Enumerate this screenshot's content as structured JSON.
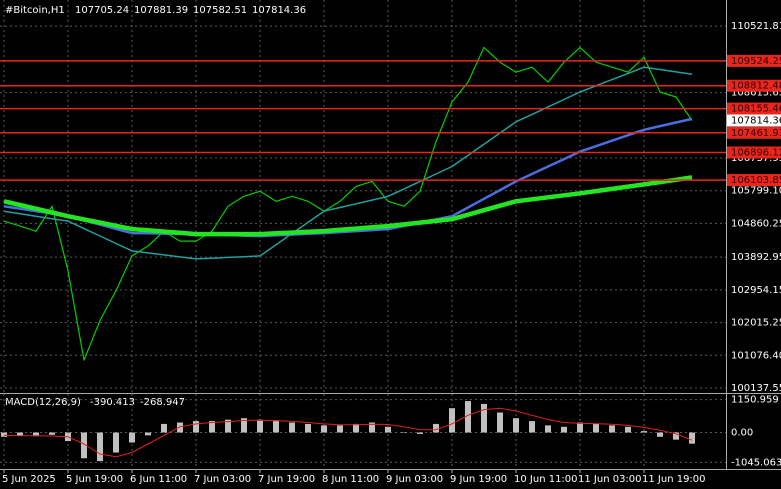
{
  "chart_data": [
    {
      "type": "line",
      "title": "#Bitcoin,H1",
      "header_values": [
        107705.24,
        107881.39,
        107582.51,
        107814.36
      ],
      "categories": [
        "5 Jun 2025",
        null,
        null,
        null,
        "5 Jun 19:00",
        null,
        null,
        null,
        "6 Jun 11:00",
        null,
        null,
        null,
        "7 Jun 03:00",
        null,
        null,
        null,
        "7 Jun 19:00",
        null,
        null,
        null,
        "8 Jun 11:00",
        null,
        null,
        null,
        "9 Jun 03:00",
        null,
        null,
        null,
        "9 Jun 19:00",
        null,
        null,
        null,
        "10 Jun 11:00",
        null,
        null,
        null,
        "11 Jun 03:00",
        null,
        null,
        null,
        "11 Jun 19:00",
        null,
        null,
        null
      ],
      "series": [
        {
          "color": "#00d000",
          "width": 1.2,
          "values": [
            104926,
            104783,
            104638,
            105353,
            103500,
            100935,
            102076,
            102931,
            103928,
            104213,
            104638,
            104353,
            104353,
            104638,
            105353,
            105638,
            105781,
            105496,
            105638,
            105496,
            105211,
            105496,
            105923,
            106066,
            105496,
            105353,
            105781,
            107206,
            108346,
            108916,
            109913,
            109486,
            109201,
            109343,
            108916,
            109486,
            109913,
            109486,
            109343,
            109201,
            109628,
            108631,
            108488,
            107814.36
          ]
        },
        {
          "color": "#20a0a0",
          "width": 1.5,
          "values": [
            105211,
            105140,
            105069,
            104997,
            104926,
            104712,
            104499,
            104285,
            104071,
            104014,
            103957,
            103899,
            103842,
            103864,
            103885,
            103907,
            103928,
            104249,
            104570,
            104890,
            105211,
            105318,
            105425,
            105531,
            105638,
            105852,
            106066,
            106279,
            106493,
            106814,
            107135,
            107455,
            107776,
            107990,
            108204,
            108417,
            108631,
            108809,
            108987,
            109165,
            109343,
            109277,
            109210,
            109144
          ]
        },
        {
          "color": "#4a6ee0",
          "width": 2.5,
          "values": [
            105353,
            105282,
            105211,
            105139,
            105068,
            104947,
            104826,
            104704,
            104583,
            104576,
            104569,
            104562,
            104555,
            104541,
            104527,
            104512,
            104498,
            104519,
            104541,
            104562,
            104583,
            104612,
            104640,
            104669,
            104697,
            104790,
            104883,
            104975,
            105068,
            105318,
            105567,
            105817,
            106066,
            106280,
            106494,
            106707,
            106921,
            107078,
            107235,
            107391,
            107548,
            107652,
            107757,
            107861
          ]
        },
        {
          "color": "#22e622",
          "width": 4.5,
          "values": [
            105496,
            105389,
            105282,
            105175,
            105068,
            104976,
            104883,
            104791,
            104698,
            104662,
            104627,
            104591,
            104555,
            104555,
            104555,
            104555,
            104555,
            104577,
            104598,
            104620,
            104641,
            104677,
            104712,
            104748,
            104783,
            104833,
            104883,
            104933,
            104983,
            105111,
            105240,
            105368,
            105496,
            105553,
            105610,
            105667,
            105724,
            105788,
            105852,
            105916,
            105980,
            106047,
            106113,
            106180
          ]
        }
      ],
      "levels": [
        109524.25,
        108812.48,
        108155.46,
        107461.93,
        106896.12,
        106103.85
      ],
      "level_color": "#e8261c",
      "ylim": [
        100023,
        111272
      ],
      "yticks": [
        110521.81,
        108615.65,
        106737.95,
        {
          "value": 105799.1,
          "label": "105799.10"
        },
        104860.25,
        103892.95,
        102954.15,
        102015.25,
        {
          "value": 101076.4,
          "label": "101076.40"
        },
        100137.55
      ],
      "grid": true
    },
    {
      "type": "bar",
      "title": "MACD(12,26,9)",
      "series": [
        {
          "color": "#c0c0c0",
          "values": [
            -150,
            -120,
            -130,
            -80,
            -300,
            -900,
            -1000,
            -700,
            -350,
            -100,
            300,
            350,
            400,
            400,
            450,
            500,
            450,
            400,
            350,
            300,
            250,
            250,
            300,
            350,
            200,
            0,
            -50,
            300,
            850,
            1100,
            1000,
            700,
            500,
            400,
            250,
            200,
            350,
            300,
            250,
            200,
            50,
            -150,
            -250,
            -390.413
          ]
        },
        {
          "type": "line",
          "color": "#e02020",
          "values": [
            -100,
            -110,
            -115,
            -120,
            -150,
            -400,
            -750,
            -850,
            -700,
            -400,
            -100,
            200,
            300,
            350,
            380,
            420,
            430,
            420,
            390,
            350,
            300,
            270,
            270,
            290,
            280,
            200,
            100,
            100,
            300,
            600,
            800,
            850,
            750,
            600,
            450,
            350,
            320,
            310,
            290,
            250,
            180,
            80,
            -50,
            -268.947
          ]
        }
      ],
      "ylim": [
        -1240,
        1346
      ],
      "yticks": [
        1150.959,
        {
          "value": 0,
          "label": "0.00"
        },
        -1045.063
      ],
      "grid": true
    }
  ]
}
